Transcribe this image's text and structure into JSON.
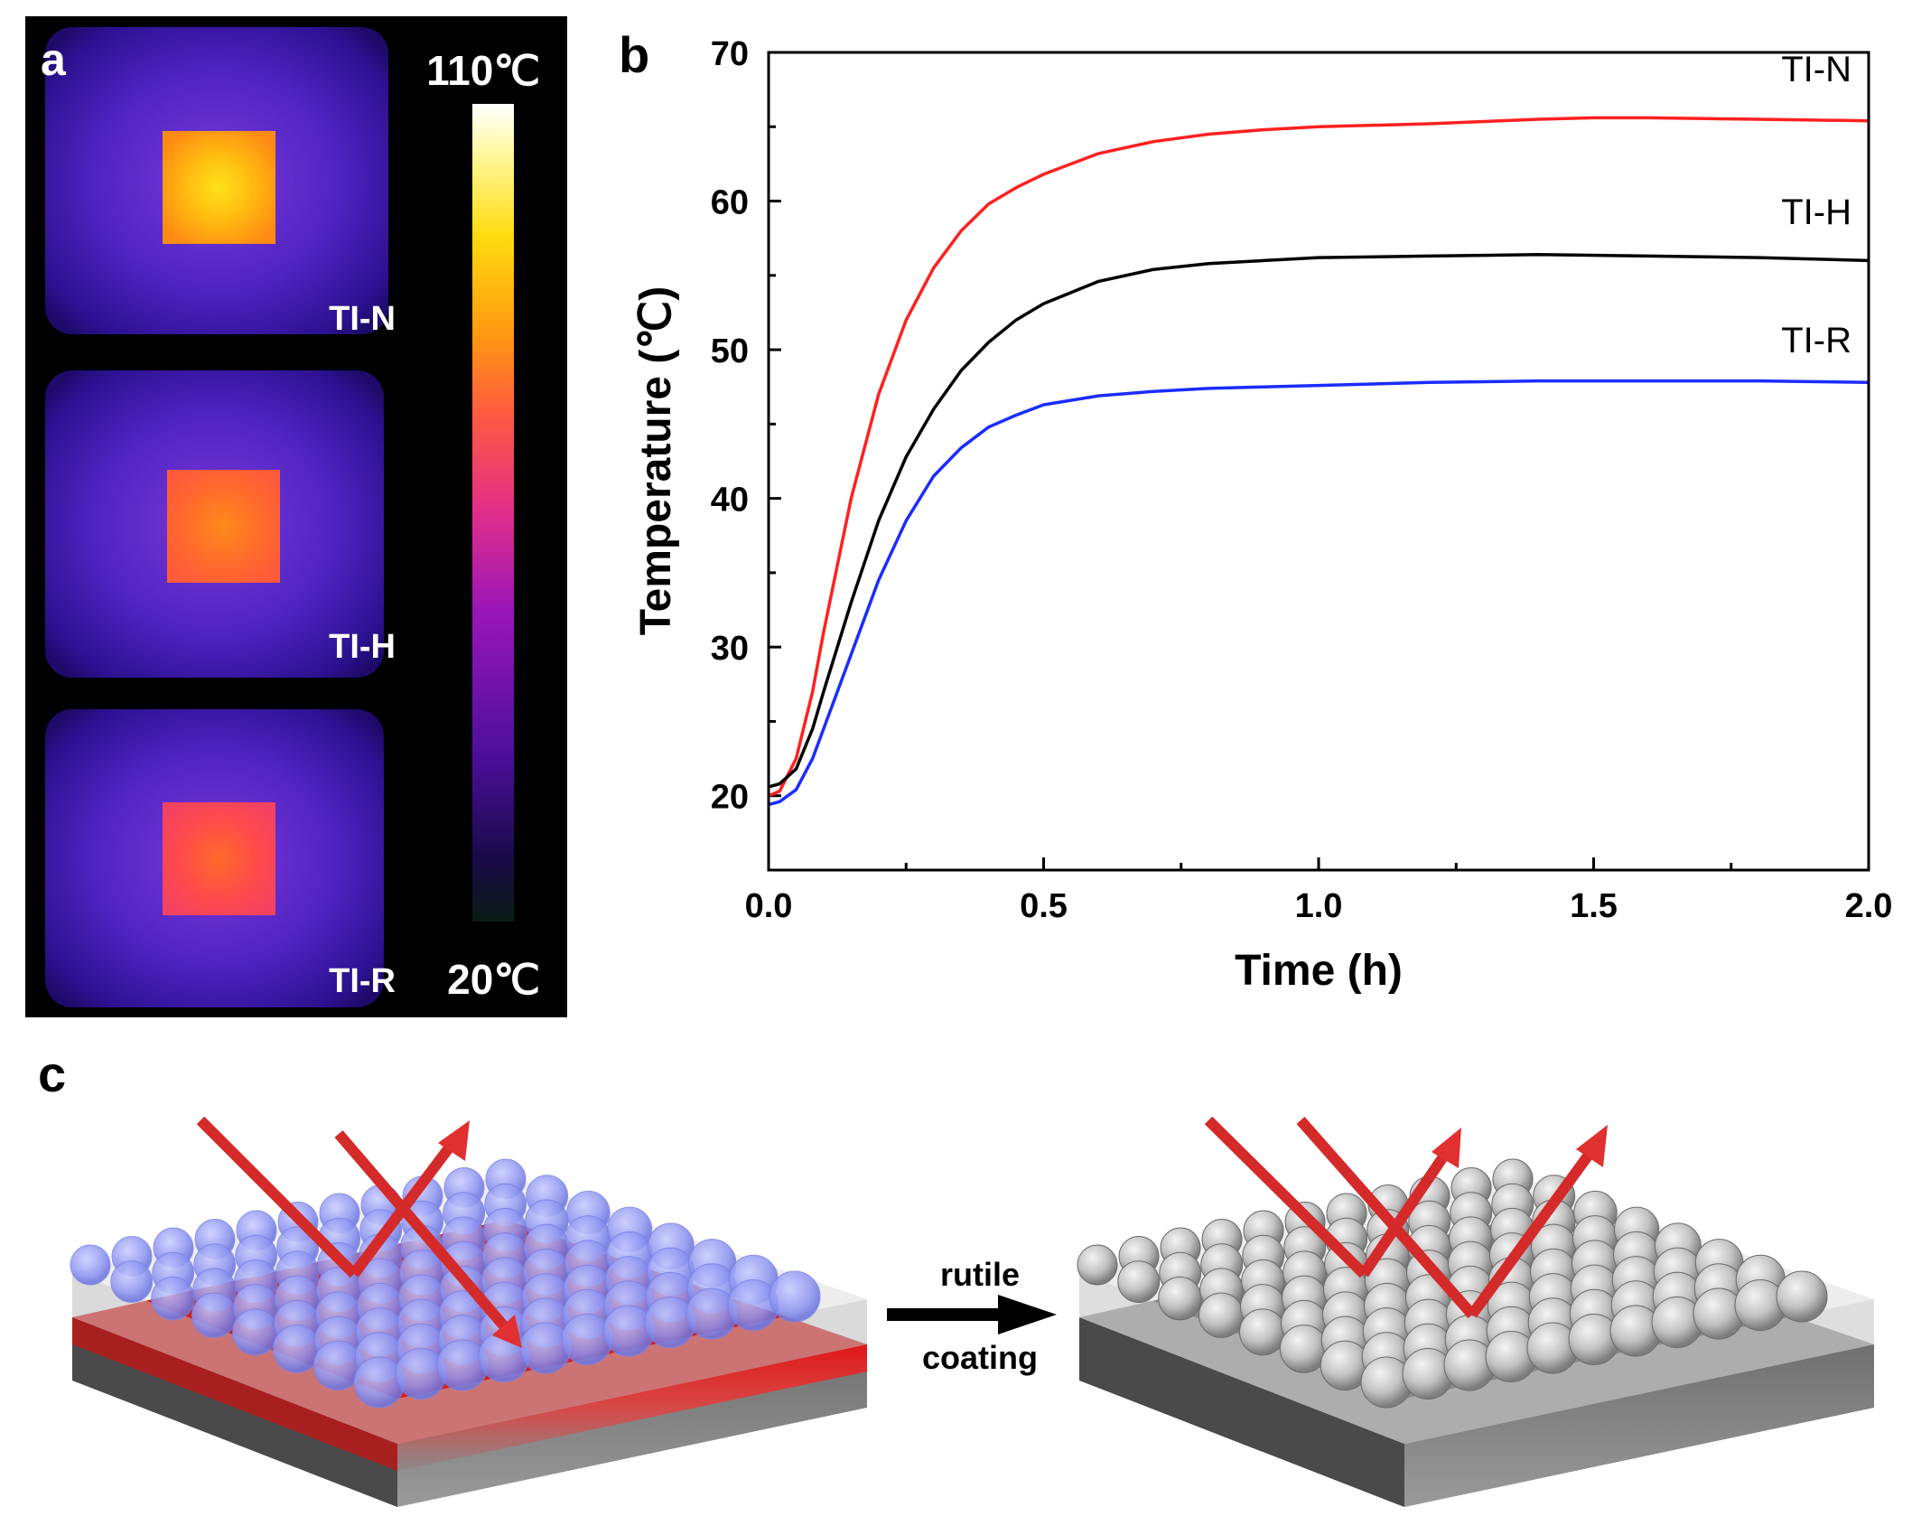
{
  "figure": {
    "panel_a": {
      "label": "a",
      "colorbar_max": "110℃",
      "colorbar_min": "20℃",
      "samples": [
        "TI-N",
        "TI-H",
        "TI-R"
      ]
    },
    "panel_b": {
      "label": "b"
    },
    "panel_c": {
      "label": "c",
      "arrow_label_top": "rutile",
      "arrow_label_bottom": "coating"
    }
  },
  "colors": {
    "TI-N": "#ff2020",
    "TI-H": "#000000",
    "TI-R": "#1a2cff",
    "background": "#ffffff",
    "thermal_bg": "#000000"
  },
  "chart_data": {
    "type": "line",
    "title": "",
    "xlabel": "Time (h)",
    "ylabel": "Temperature (℃)",
    "xlim": [
      0,
      2.0
    ],
    "ylim": [
      15,
      70
    ],
    "xticks": [
      "0.0",
      "0.5",
      "1.0",
      "1.5",
      "2.0"
    ],
    "yticks": [
      "20",
      "30",
      "40",
      "50",
      "60",
      "70"
    ],
    "series": [
      {
        "name": "TI-N",
        "color": "#ff2020",
        "x": [
          0,
          0.02,
          0.05,
          0.08,
          0.1,
          0.15,
          0.2,
          0.25,
          0.3,
          0.35,
          0.4,
          0.45,
          0.5,
          0.6,
          0.7,
          0.8,
          0.9,
          1.0,
          1.2,
          1.4,
          1.5,
          1.6,
          1.8,
          2.0
        ],
        "y": [
          20.0,
          20.3,
          22.5,
          27.0,
          31.0,
          40.0,
          47.0,
          52.0,
          55.5,
          58.0,
          59.8,
          60.9,
          61.8,
          63.2,
          64.0,
          64.5,
          64.8,
          65.0,
          65.2,
          65.5,
          65.6,
          65.6,
          65.5,
          65.4
        ]
      },
      {
        "name": "TI-H",
        "color": "#000000",
        "x": [
          0,
          0.02,
          0.05,
          0.08,
          0.1,
          0.15,
          0.2,
          0.25,
          0.3,
          0.35,
          0.4,
          0.45,
          0.5,
          0.6,
          0.7,
          0.8,
          0.9,
          1.0,
          1.2,
          1.4,
          1.6,
          1.8,
          2.0
        ],
        "y": [
          20.6,
          20.8,
          21.8,
          24.5,
          27.0,
          33.0,
          38.5,
          42.8,
          46.0,
          48.6,
          50.5,
          52.0,
          53.1,
          54.6,
          55.4,
          55.8,
          56.0,
          56.2,
          56.3,
          56.4,
          56.3,
          56.2,
          56.0
        ]
      },
      {
        "name": "TI-R",
        "color": "#1a2cff",
        "x": [
          0,
          0.02,
          0.05,
          0.08,
          0.1,
          0.15,
          0.2,
          0.25,
          0.3,
          0.35,
          0.4,
          0.45,
          0.5,
          0.6,
          0.7,
          0.8,
          0.9,
          1.0,
          1.2,
          1.4,
          1.6,
          1.8,
          2.0
        ],
        "y": [
          19.4,
          19.6,
          20.4,
          22.5,
          24.5,
          29.5,
          34.5,
          38.5,
          41.5,
          43.4,
          44.8,
          45.6,
          46.3,
          46.9,
          47.2,
          47.4,
          47.5,
          47.6,
          47.8,
          47.9,
          47.9,
          47.9,
          47.8
        ]
      }
    ]
  }
}
